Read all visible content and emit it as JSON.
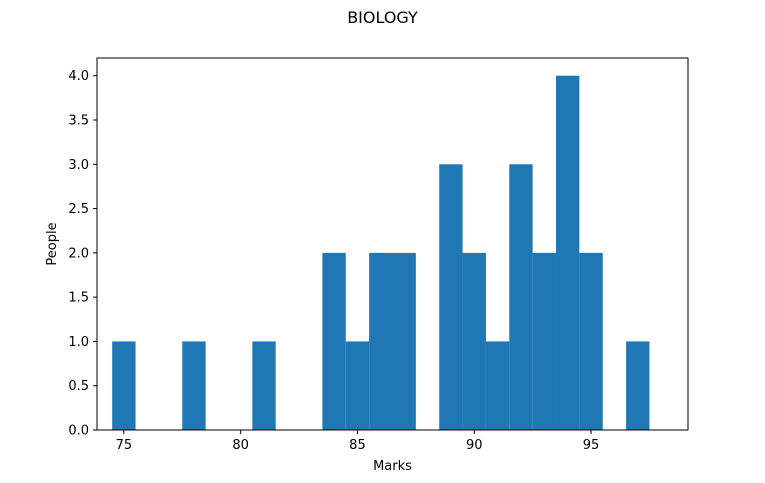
{
  "chart_data": {
    "type": "bar",
    "title": "BIOLOGY",
    "xlabel": "Marks",
    "ylabel": "People",
    "xlim": [
      73.85,
      99.15
    ],
    "ylim": [
      0,
      4.2
    ],
    "xticks": [
      75,
      80,
      85,
      90,
      95
    ],
    "yticks": [
      0.0,
      0.5,
      1.0,
      1.5,
      2.0,
      2.5,
      3.0,
      3.5,
      4.0
    ],
    "ytick_labels": [
      "0.0",
      "0.5",
      "1.0",
      "1.5",
      "2.0",
      "2.5",
      "3.0",
      "3.5",
      "4.0"
    ],
    "bin_width": 1,
    "bins": [
      {
        "start": 74.5,
        "end": 75.5,
        "count": 1
      },
      {
        "start": 77.5,
        "end": 78.5,
        "count": 1
      },
      {
        "start": 80.5,
        "end": 81.5,
        "count": 1
      },
      {
        "start": 83.5,
        "end": 84.5,
        "count": 2
      },
      {
        "start": 84.5,
        "end": 85.5,
        "count": 1
      },
      {
        "start": 85.5,
        "end": 86.5,
        "count": 2
      },
      {
        "start": 86.5,
        "end": 87.5,
        "count": 2
      },
      {
        "start": 88.5,
        "end": 89.5,
        "count": 3
      },
      {
        "start": 89.5,
        "end": 90.5,
        "count": 2
      },
      {
        "start": 90.5,
        "end": 91.5,
        "count": 1
      },
      {
        "start": 91.5,
        "end": 92.5,
        "count": 3
      },
      {
        "start": 92.5,
        "end": 93.5,
        "count": 2
      },
      {
        "start": 93.5,
        "end": 94.5,
        "count": 4
      },
      {
        "start": 94.5,
        "end": 95.5,
        "count": 2
      },
      {
        "start": 96.5,
        "end": 97.5,
        "count": 1
      }
    ],
    "bar_color": "#1f77b4",
    "grid": false,
    "legend": "none"
  }
}
